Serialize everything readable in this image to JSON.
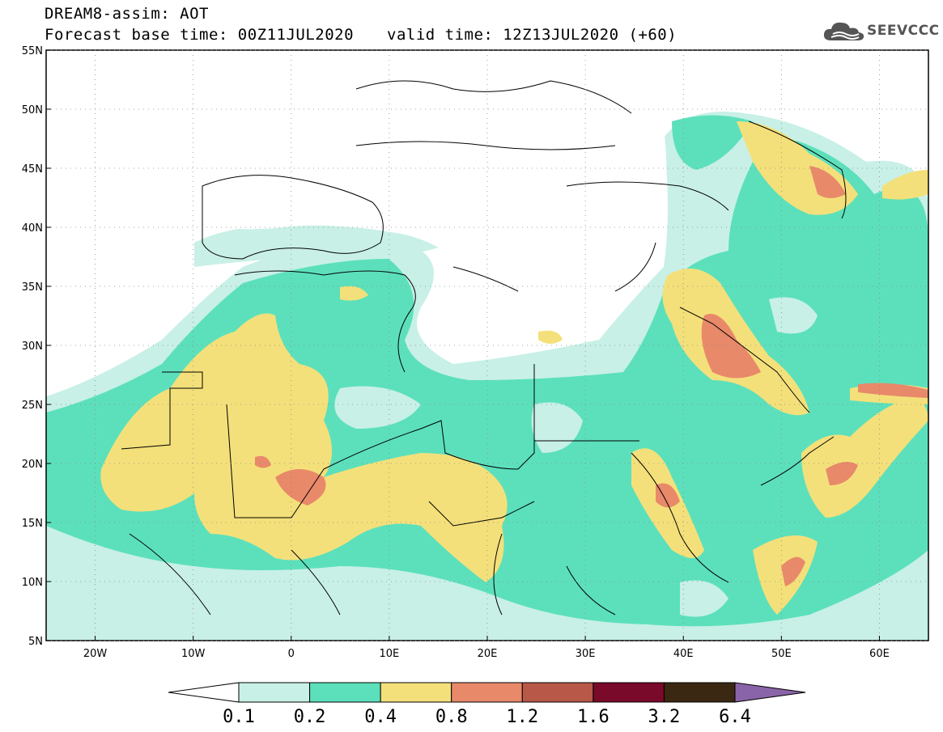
{
  "header": {
    "title": "DREAM8-assim: AOT",
    "base_time": "Forecast base time: 00Z11JUL2020",
    "valid_time": "valid time: 12Z13JUL2020 (+60)"
  },
  "logo": {
    "text": "SEEVCCC",
    "icon": "cloud-icon"
  },
  "axes": {
    "lat_labels": [
      "55N",
      "50N",
      "45N",
      "40N",
      "35N",
      "30N",
      "25N",
      "20N",
      "15N",
      "10N",
      "5N"
    ],
    "lat_values": [
      55,
      50,
      45,
      40,
      35,
      30,
      25,
      20,
      15,
      10,
      5
    ],
    "lon_labels": [
      "20W",
      "10W",
      "0",
      "10E",
      "20E",
      "30E",
      "40E",
      "50E",
      "60E"
    ],
    "lon_values": [
      -20,
      -10,
      0,
      10,
      20,
      30,
      40,
      50,
      60
    ],
    "lon_range": [
      -25,
      65
    ],
    "lat_range": [
      5,
      55
    ]
  },
  "colorbar": {
    "labels": [
      "0.1",
      "0.2",
      "0.4",
      "0.8",
      "1.2",
      "1.6",
      "3.2",
      "6.4"
    ],
    "colors": [
      "#ffffff",
      "#c8f0e6",
      "#5ce0bc",
      "#f4e07a",
      "#e8896a",
      "#b85848",
      "#7a0a2a",
      "#3a2812",
      "#8a64a8"
    ]
  },
  "levels": [
    {
      "name": "0.1",
      "color": "#c8f0e6"
    },
    {
      "name": "0.2",
      "color": "#5ce0bc"
    },
    {
      "name": "0.4",
      "color": "#f4e07a"
    },
    {
      "name": "0.8",
      "color": "#e8896a"
    },
    {
      "name": "1.2",
      "color": "#b85848"
    }
  ]
}
